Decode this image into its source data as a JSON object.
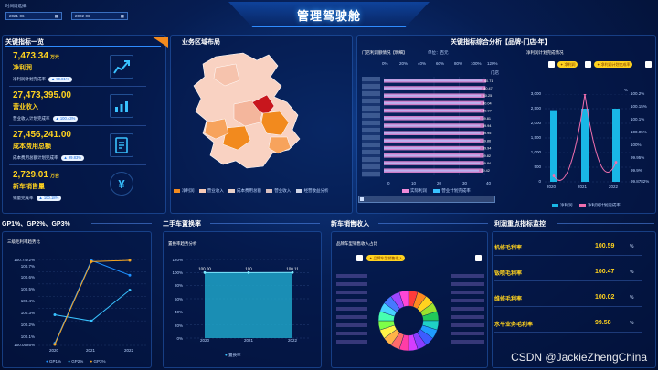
{
  "header": {
    "title": "管理驾驶舱",
    "date_label": "时间周选择",
    "date_from": "2021-06",
    "date_to": "2022-06"
  },
  "kpi": {
    "title": "关键指标一览",
    "items": [
      {
        "value": "7,473.34",
        "unit": "万元",
        "name": "净利润",
        "sub": "净利润计划完成率",
        "rate": "99.81%",
        "icon": "chart-up-icon"
      },
      {
        "value": "27,473,395.00",
        "unit": "",
        "name": "营业收入",
        "sub": "营业收入计划完成率",
        "rate": "100.43%",
        "icon": "bar-chart-icon"
      },
      {
        "value": "27,456,241.00",
        "unit": "",
        "name": "成本费用总额",
        "sub": "成本费用总额计划完成率",
        "rate": "99.83%",
        "icon": "document-icon"
      },
      {
        "value": "2,729.01",
        "unit": "万台",
        "name": "新车销售量",
        "sub": "销量完成率",
        "rate": "100.18%",
        "icon": "yuan-icon"
      }
    ]
  },
  "map": {
    "title": "业务区域布局",
    "legend": [
      "净利润",
      "营业收入",
      "成本费用总额",
      "营业收入",
      "经营收益分析"
    ],
    "legend_colors": [
      "#f28a1e",
      "#f7c9b6",
      "#e8d0c8",
      "#d9c0c0",
      "#cfd5e8"
    ]
  },
  "analysis": {
    "title": "关键指标综合分析【品牌-门店-年】",
    "sub_left": "门店利润额情况【明细】",
    "unit_left": "单位：百元",
    "x_ticks_pct": [
      "0%",
      "20%",
      "40%",
      "60%",
      "80%",
      "100%",
      "120%"
    ],
    "x_ticks_val": [
      "0",
      "10",
      "20",
      "30",
      "40"
    ],
    "right_axis_tag": "门店",
    "bar_labels": [
      "40.71",
      "40.47",
      "40.25",
      "40.04",
      "40.07",
      "39.81",
      "39.94",
      "39.95",
      "39.86",
      "39.94",
      "39.82",
      "39.84",
      "39.42"
    ],
    "legend": [
      "实际利润",
      "营业计划完成率"
    ],
    "sub_right": "净利润计划完成情况",
    "pill_a": "净利润",
    "pill_b": "净利润计划完成率",
    "y_left": [
      "3,000",
      "2,500",
      "2,000",
      "1,500",
      "1,000",
      "500",
      "0"
    ],
    "y_right": [
      "100.2%",
      "100.15%",
      "100.1%",
      "100.05%",
      "100%",
      "99.95%",
      "99.9%",
      "99.8782%"
    ],
    "y_right_unit": "%",
    "years": [
      "2020",
      "2021",
      "2022"
    ],
    "legend_right": [
      "净利润",
      "净利润计划完成率"
    ]
  },
  "gp": {
    "title": "GP1%、GP2%、GP3%",
    "sub": "三级毛利率趋势比",
    "y_ticks": [
      "100.7472%",
      "100.7%",
      "100.6%",
      "100.5%",
      "100.4%",
      "100.3%",
      "100.2%",
      "100.1%",
      "100.0526%"
    ],
    "years": [
      "2020",
      "2021",
      "2022"
    ],
    "legend": [
      "GP1%",
      "GP2%",
      "GP3%"
    ]
  },
  "used_car": {
    "title": "二手车置换率",
    "sub": "置换率趋势分析",
    "y_ticks": [
      "120%",
      "100%",
      "80%",
      "60%",
      "40%",
      "20%",
      "0%"
    ],
    "labels": [
      "100.00",
      "100",
      "100.11"
    ],
    "years": [
      "2020",
      "2021",
      "2022"
    ],
    "legend": "置换率"
  },
  "new_car": {
    "title": "新车销售收入",
    "sub": "品牌车型销售收入占比",
    "pill": "品牌车型销售收入"
  },
  "gross": {
    "title": "利润重点指标监控",
    "items": [
      {
        "name": "机修毛利率",
        "value": "100.59",
        "unit": "%"
      },
      {
        "name": "钣喷毛利率",
        "value": "100.47",
        "unit": "%"
      },
      {
        "name": "维修毛利率",
        "value": "100.02",
        "unit": "%"
      },
      {
        "name": "水平业务毛利率",
        "value": "99.58",
        "unit": "%"
      }
    ]
  },
  "watermark": "CSDN @JackieZhengChina",
  "chart_data": [
    {
      "type": "bar",
      "title": "门店利润额情况【明细】",
      "values": [
        40.71,
        40.47,
        40.25,
        40.04,
        40.07,
        39.81,
        39.94,
        39.95,
        39.86,
        39.94,
        39.82,
        39.84,
        39.42
      ],
      "xlim": [
        0,
        40
      ]
    },
    {
      "type": "bar",
      "title": "净利润计划完成情况",
      "categories": [
        "2020",
        "2021",
        "2022"
      ],
      "series": [
        {
          "name": "净利润",
          "values": [
            2450,
            2500,
            2500
          ]
        },
        {
          "name": "净利润计划完成率",
          "values": [
            99.9,
            100.2,
            99.95
          ]
        }
      ]
    },
    {
      "type": "line",
      "title": "三级毛利率趋势比",
      "categories": [
        "2020",
        "2021",
        "2022"
      ],
      "series": [
        {
          "name": "GP1%",
          "values": [
            100.07,
            100.74,
            100.62
          ]
        },
        {
          "name": "GP2%",
          "values": [
            100.3,
            100.25,
            100.5
          ]
        },
        {
          "name": "GP3%",
          "values": [
            100.06,
            100.73,
            100.74
          ]
        }
      ],
      "ylim": [
        100.0526,
        100.7472
      ]
    },
    {
      "type": "area",
      "title": "置换率趋势分析",
      "categories": [
        "2020",
        "2021",
        "2022"
      ],
      "values": [
        100.0,
        100,
        100.11
      ],
      "ylim": [
        0,
        120
      ]
    }
  ]
}
